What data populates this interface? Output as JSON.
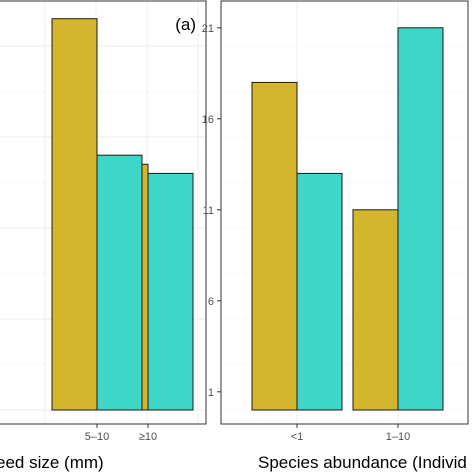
{
  "chart_data": [
    {
      "type": "bar",
      "panel_label": "(a)",
      "xlabel": "eed size (mm)",
      "categories": [
        "",
        "5–10",
        "≥10"
      ],
      "series": [
        {
          "values": [
            null,
            21.5,
            13.5
          ],
          "color": "#d4b62c"
        },
        {
          "values": [
            null,
            14,
            13
          ],
          "color": "#3dd6c8"
        }
      ],
      "ylim": [
        0,
        23
      ],
      "grid": true,
      "legend": "none"
    },
    {
      "type": "bar",
      "xlabel": "Species abundance (Individ",
      "ylabel_ticks": [
        "1",
        "6",
        "11",
        "16",
        "21"
      ],
      "categories": [
        "<1",
        "1–10",
        ""
      ],
      "series": [
        {
          "values": [
            18,
            11,
            null
          ],
          "color": "#d4b62c"
        },
        {
          "values": [
            13,
            21,
            0
          ],
          "color": "#3dd6c8"
        }
      ],
      "yticks": [
        1,
        6,
        11,
        16,
        21
      ],
      "ylim": [
        0,
        23.2
      ],
      "grid": true,
      "legend": "none"
    }
  ]
}
